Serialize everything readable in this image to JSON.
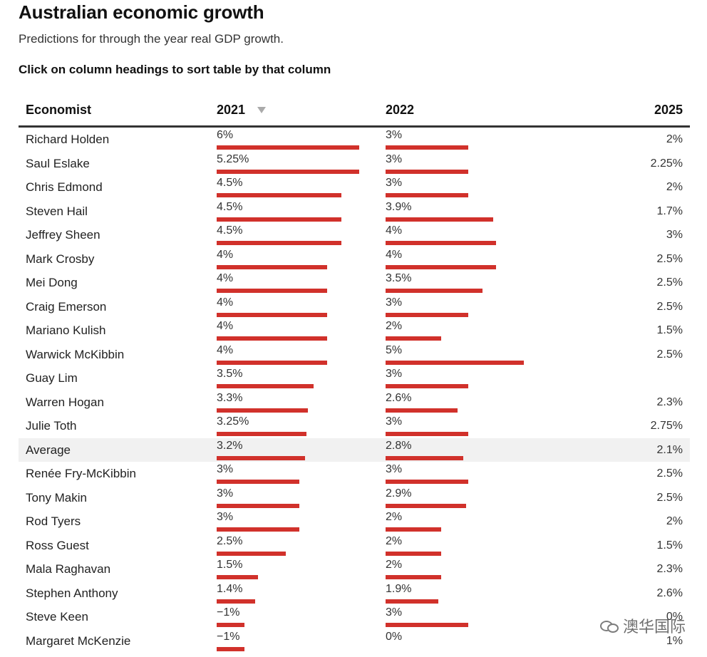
{
  "header": {
    "title": "Australian economic growth",
    "subtitle": "Predictions for through the year real GDP growth.",
    "instruction": "Click on column headings to sort table by that column"
  },
  "columns": {
    "economist": "Economist",
    "y2021": "2021",
    "y2022": "2022",
    "y2025": "2025"
  },
  "sort": {
    "column": "2021",
    "direction": "descending",
    "icon": "triangle-down-icon"
  },
  "watermark": {
    "text": "澳华国际",
    "icon": "wechat-icon"
  },
  "colors": {
    "bar": "#d1312b",
    "average_row": "#f1f1f1",
    "header_rule": "#333333"
  },
  "chart_data": {
    "type": "table",
    "title": "Australian economic growth",
    "subtitle": "Predictions for through the year real GDP growth.",
    "bar_scale_max": 5,
    "rows": [
      {
        "name": "Richard Holden",
        "y2021": 6,
        "y2021_label": "6%",
        "y2022": 3,
        "y2022_label": "3%",
        "y2025_label": "2%",
        "average": false
      },
      {
        "name": "Saul Eslake",
        "y2021": 5.25,
        "y2021_label": "5.25%",
        "y2022": 3,
        "y2022_label": "3%",
        "y2025_label": "2.25%",
        "average": false
      },
      {
        "name": "Chris Edmond",
        "y2021": 4.5,
        "y2021_label": "4.5%",
        "y2022": 3,
        "y2022_label": "3%",
        "y2025_label": "2%",
        "average": false
      },
      {
        "name": "Steven Hail",
        "y2021": 4.5,
        "y2021_label": "4.5%",
        "y2022": 3.9,
        "y2022_label": "3.9%",
        "y2025_label": "1.7%",
        "average": false
      },
      {
        "name": "Jeffrey Sheen",
        "y2021": 4.5,
        "y2021_label": "4.5%",
        "y2022": 4,
        "y2022_label": "4%",
        "y2025_label": "3%",
        "average": false
      },
      {
        "name": "Mark Crosby",
        "y2021": 4,
        "y2021_label": "4%",
        "y2022": 4,
        "y2022_label": "4%",
        "y2025_label": "2.5%",
        "average": false
      },
      {
        "name": "Mei Dong",
        "y2021": 4,
        "y2021_label": "4%",
        "y2022": 3.5,
        "y2022_label": "3.5%",
        "y2025_label": "2.5%",
        "average": false
      },
      {
        "name": "Craig Emerson",
        "y2021": 4,
        "y2021_label": "4%",
        "y2022": 3,
        "y2022_label": "3%",
        "y2025_label": "2.5%",
        "average": false
      },
      {
        "name": "Mariano Kulish",
        "y2021": 4,
        "y2021_label": "4%",
        "y2022": 2,
        "y2022_label": "2%",
        "y2025_label": "1.5%",
        "average": false
      },
      {
        "name": "Warwick McKibbin",
        "y2021": 4,
        "y2021_label": "4%",
        "y2022": 5,
        "y2022_label": "5%",
        "y2025_label": "2.5%",
        "average": false
      },
      {
        "name": "Guay Lim",
        "y2021": 3.5,
        "y2021_label": "3.5%",
        "y2022": 3,
        "y2022_label": "3%",
        "y2025_label": "",
        "average": false
      },
      {
        "name": "Warren Hogan",
        "y2021": 3.3,
        "y2021_label": "3.3%",
        "y2022": 2.6,
        "y2022_label": "2.6%",
        "y2025_label": "2.3%",
        "average": false
      },
      {
        "name": "Julie Toth",
        "y2021": 3.25,
        "y2021_label": "3.25%",
        "y2022": 3,
        "y2022_label": "3%",
        "y2025_label": "2.75%",
        "average": false
      },
      {
        "name": "Average",
        "y2021": 3.2,
        "y2021_label": "3.2%",
        "y2022": 2.8,
        "y2022_label": "2.8%",
        "y2025_label": "2.1%",
        "average": true
      },
      {
        "name": "Renée Fry-McKibbin",
        "y2021": 3,
        "y2021_label": "3%",
        "y2022": 3,
        "y2022_label": "3%",
        "y2025_label": "2.5%",
        "average": false
      },
      {
        "name": "Tony Makin",
        "y2021": 3,
        "y2021_label": "3%",
        "y2022": 2.9,
        "y2022_label": "2.9%",
        "y2025_label": "2.5%",
        "average": false
      },
      {
        "name": "Rod Tyers",
        "y2021": 3,
        "y2021_label": "3%",
        "y2022": 2,
        "y2022_label": "2%",
        "y2025_label": "2%",
        "average": false
      },
      {
        "name": "Ross Guest",
        "y2021": 2.5,
        "y2021_label": "2.5%",
        "y2022": 2,
        "y2022_label": "2%",
        "y2025_label": "1.5%",
        "average": false
      },
      {
        "name": "Mala Raghavan",
        "y2021": 1.5,
        "y2021_label": "1.5%",
        "y2022": 2,
        "y2022_label": "2%",
        "y2025_label": "2.3%",
        "average": false
      },
      {
        "name": "Stephen Anthony",
        "y2021": 1.4,
        "y2021_label": "1.4%",
        "y2022": 1.9,
        "y2022_label": "1.9%",
        "y2025_label": "2.6%",
        "average": false
      },
      {
        "name": "Steve Keen",
        "y2021": -1,
        "y2021_label": "−1%",
        "y2022": 3,
        "y2022_label": "3%",
        "y2025_label": "0%",
        "average": false
      },
      {
        "name": "Margaret McKenzie",
        "y2021": -1,
        "y2021_label": "−1%",
        "y2022": 0,
        "y2022_label": "0%",
        "y2025_label": "1%",
        "average": false
      }
    ]
  }
}
